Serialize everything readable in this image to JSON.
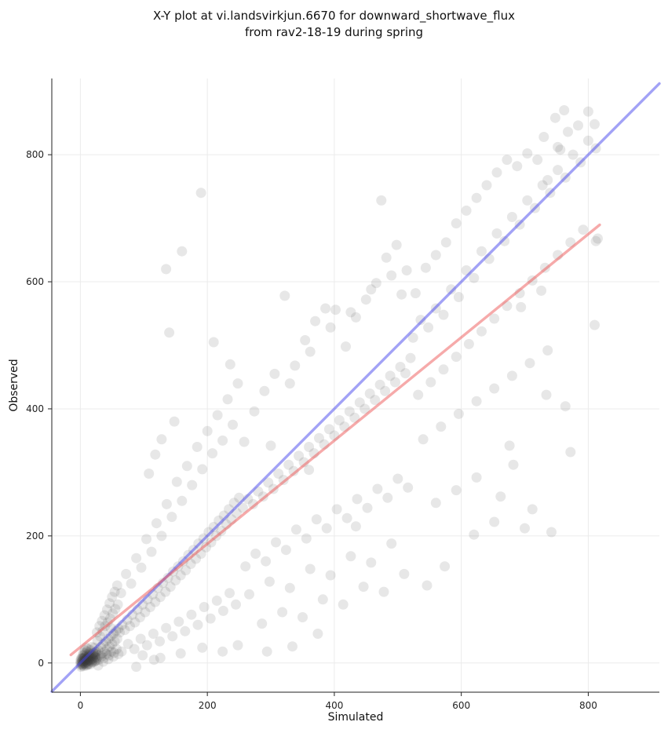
{
  "chart_data": {
    "type": "scatter",
    "title": "X-Y plot at vi.landsvirkjun.6670 for downward_shortwave_flux from rav2-18-19 during spring",
    "title_lines": [
      "X-Y plot at vi.landsvirkjun.6670 for downward_shortwave_flux",
      "from rav2-18-19 during spring"
    ],
    "xlabel": "Simulated",
    "ylabel": "Observed",
    "xlim": [
      -45,
      912
    ],
    "ylim": [
      -46,
      920
    ],
    "x_ticks": [
      0,
      200,
      400,
      600,
      800
    ],
    "y_ticks": [
      0,
      200,
      400,
      600,
      800
    ],
    "grid": true,
    "legend": "none",
    "style": {
      "marker_color": "#3d3d3d",
      "marker_alpha": 0.12,
      "marker_radius": 6.5,
      "grid_color": "#ebebeb",
      "spine_color": "#222222",
      "background": "#ffffff"
    },
    "lines": [
      {
        "name": "identity-1-to-1-line",
        "slope": 1,
        "intercept": 0,
        "x_range": [
          -45,
          912
        ],
        "color": "#4646ee",
        "opacity": 0.5
      },
      {
        "name": "regression-fit-line",
        "slope": 0.8125,
        "intercept": 25,
        "x_range": [
          -15,
          818
        ],
        "color": "#ee5555",
        "opacity": 0.5
      }
    ],
    "points": [
      [
        0,
        -2
      ],
      [
        1,
        1
      ],
      [
        2,
        -4
      ],
      [
        3,
        3
      ],
      [
        4,
        0
      ],
      [
        5,
        6
      ],
      [
        6,
        -1
      ],
      [
        7,
        4
      ],
      [
        8,
        9
      ],
      [
        9,
        2
      ],
      [
        10,
        7
      ],
      [
        11,
        -3
      ],
      [
        12,
        5
      ],
      [
        13,
        12
      ],
      [
        14,
        3
      ],
      [
        15,
        9
      ],
      [
        1,
        -6
      ],
      [
        2,
        2
      ],
      [
        3,
        -2
      ],
      [
        4,
        7
      ],
      [
        5,
        -5
      ],
      [
        6,
        3
      ],
      [
        7,
        10
      ],
      [
        8,
        -2
      ],
      [
        9,
        6
      ],
      [
        10,
        1
      ],
      [
        11,
        8
      ],
      [
        12,
        -1
      ],
      [
        13,
        4
      ],
      [
        14,
        11
      ],
      [
        0,
        3
      ],
      [
        1,
        7
      ],
      [
        2,
        -1
      ],
      [
        3,
        8
      ],
      [
        4,
        -3
      ],
      [
        5,
        2
      ],
      [
        6,
        12
      ],
      [
        7,
        0
      ],
      [
        8,
        5
      ],
      [
        9,
        -4
      ],
      [
        10,
        13
      ],
      [
        11,
        3
      ],
      [
        12,
        10
      ],
      [
        13,
        -2
      ],
      [
        14,
        6
      ],
      [
        15,
        14
      ],
      [
        16,
        4
      ],
      [
        17,
        10
      ],
      [
        18,
        2
      ],
      [
        19,
        8
      ],
      [
        20,
        16
      ],
      [
        21,
        5
      ],
      [
        22,
        12
      ],
      [
        23,
        3
      ],
      [
        24,
        10
      ],
      [
        25,
        18
      ],
      [
        16,
        -2
      ],
      [
        17,
        6
      ],
      [
        18,
        13
      ],
      [
        19,
        1
      ],
      [
        20,
        7
      ],
      [
        21,
        15
      ],
      [
        22,
        2
      ],
      [
        23,
        9
      ],
      [
        24,
        17
      ],
      [
        25,
        4
      ],
      [
        2,
        6
      ],
      [
        4,
        12
      ],
      [
        6,
        8
      ],
      [
        8,
        15
      ],
      [
        10,
        18
      ],
      [
        12,
        22
      ],
      [
        14,
        16
      ],
      [
        16,
        20
      ],
      [
        18,
        25
      ],
      [
        20,
        11
      ],
      [
        22,
        24
      ],
      [
        24,
        14
      ],
      [
        5,
        16
      ],
      [
        7,
        20
      ],
      [
        9,
        24
      ],
      [
        26,
        8
      ],
      [
        28,
        20
      ],
      [
        30,
        12
      ],
      [
        32,
        25
      ],
      [
        34,
        15
      ],
      [
        36,
        30
      ],
      [
        38,
        18
      ],
      [
        40,
        34
      ],
      [
        42,
        22
      ],
      [
        44,
        38
      ],
      [
        46,
        26
      ],
      [
        48,
        42
      ],
      [
        50,
        30
      ],
      [
        52,
        46
      ],
      [
        54,
        34
      ],
      [
        56,
        50
      ],
      [
        58,
        38
      ],
      [
        60,
        54
      ],
      [
        27,
        35
      ],
      [
        31,
        42
      ],
      [
        35,
        50
      ],
      [
        39,
        58
      ],
      [
        43,
        64
      ],
      [
        47,
        70
      ],
      [
        51,
        78
      ],
      [
        55,
        85
      ],
      [
        59,
        92
      ],
      [
        29,
        5
      ],
      [
        33,
        10
      ],
      [
        37,
        8
      ],
      [
        41,
        14
      ],
      [
        45,
        12
      ],
      [
        49,
        18
      ],
      [
        53,
        16
      ],
      [
        57,
        22
      ],
      [
        26,
        48
      ],
      [
        30,
        58
      ],
      [
        34,
        66
      ],
      [
        38,
        75
      ],
      [
        42,
        84
      ],
      [
        46,
        94
      ],
      [
        50,
        104
      ],
      [
        54,
        112
      ],
      [
        58,
        122
      ],
      [
        28,
        -4
      ],
      [
        36,
        2
      ],
      [
        44,
        6
      ],
      [
        52,
        10
      ],
      [
        60,
        14
      ],
      [
        48,
        55
      ],
      [
        62,
        48
      ],
      [
        66,
        60
      ],
      [
        70,
        52
      ],
      [
        74,
        68
      ],
      [
        78,
        58
      ],
      [
        82,
        76
      ],
      [
        86,
        64
      ],
      [
        90,
        84
      ],
      [
        94,
        72
      ],
      [
        98,
        92
      ],
      [
        102,
        80
      ],
      [
        106,
        100
      ],
      [
        110,
        88
      ],
      [
        114,
        108
      ],
      [
        118,
        96
      ],
      [
        122,
        118
      ],
      [
        126,
        104
      ],
      [
        130,
        126
      ],
      [
        134,
        112
      ],
      [
        138,
        134
      ],
      [
        142,
        120
      ],
      [
        146,
        144
      ],
      [
        150,
        130
      ],
      [
        154,
        152
      ],
      [
        158,
        138
      ],
      [
        162,
        160
      ],
      [
        166,
        146
      ],
      [
        170,
        170
      ],
      [
        174,
        156
      ],
      [
        178,
        178
      ],
      [
        182,
        164
      ],
      [
        186,
        188
      ],
      [
        190,
        172
      ],
      [
        194,
        196
      ],
      [
        198,
        182
      ],
      [
        202,
        206
      ],
      [
        206,
        190
      ],
      [
        210,
        214
      ],
      [
        214,
        200
      ],
      [
        218,
        224
      ],
      [
        222,
        208
      ],
      [
        226,
        232
      ],
      [
        230,
        218
      ],
      [
        234,
        242
      ],
      [
        238,
        226
      ],
      [
        242,
        252
      ],
      [
        246,
        236
      ],
      [
        250,
        260
      ],
      [
        64,
        110
      ],
      [
        72,
        140
      ],
      [
        80,
        125
      ],
      [
        88,
        165
      ],
      [
        96,
        150
      ],
      [
        104,
        195
      ],
      [
        112,
        175
      ],
      [
        120,
        220
      ],
      [
        128,
        200
      ],
      [
        136,
        250
      ],
      [
        144,
        230
      ],
      [
        152,
        285
      ],
      [
        160,
        255
      ],
      [
        168,
        310
      ],
      [
        176,
        280
      ],
      [
        184,
        340
      ],
      [
        192,
        305
      ],
      [
        200,
        365
      ],
      [
        208,
        330
      ],
      [
        216,
        390
      ],
      [
        224,
        350
      ],
      [
        232,
        415
      ],
      [
        240,
        375
      ],
      [
        248,
        440
      ],
      [
        65,
        18
      ],
      [
        75,
        30
      ],
      [
        85,
        22
      ],
      [
        95,
        38
      ],
      [
        105,
        28
      ],
      [
        115,
        46
      ],
      [
        125,
        34
      ],
      [
        135,
        55
      ],
      [
        145,
        42
      ],
      [
        155,
        65
      ],
      [
        165,
        50
      ],
      [
        175,
        76
      ],
      [
        185,
        60
      ],
      [
        195,
        88
      ],
      [
        205,
        70
      ],
      [
        215,
        98
      ],
      [
        225,
        82
      ],
      [
        235,
        110
      ],
      [
        245,
        92
      ],
      [
        135,
        620
      ],
      [
        160,
        648
      ],
      [
        190,
        740
      ],
      [
        140,
        520
      ],
      [
        148,
        380
      ],
      [
        128,
        352
      ],
      [
        118,
        328
      ],
      [
        108,
        298
      ],
      [
        210,
        505
      ],
      [
        236,
        470
      ],
      [
        98,
        12
      ],
      [
        126,
        8
      ],
      [
        158,
        15
      ],
      [
        192,
        24
      ],
      [
        224,
        18
      ],
      [
        248,
        28
      ],
      [
        88,
        -6
      ],
      [
        116,
        5
      ],
      [
        256,
        244
      ],
      [
        264,
        258
      ],
      [
        272,
        250
      ],
      [
        280,
        270
      ],
      [
        288,
        262
      ],
      [
        296,
        284
      ],
      [
        304,
        274
      ],
      [
        312,
        298
      ],
      [
        320,
        288
      ],
      [
        328,
        312
      ],
      [
        336,
        302
      ],
      [
        344,
        326
      ],
      [
        352,
        316
      ],
      [
        360,
        340
      ],
      [
        368,
        330
      ],
      [
        376,
        354
      ],
      [
        384,
        344
      ],
      [
        392,
        368
      ],
      [
        400,
        358
      ],
      [
        408,
        382
      ],
      [
        416,
        372
      ],
      [
        424,
        396
      ],
      [
        432,
        386
      ],
      [
        440,
        410
      ],
      [
        448,
        400
      ],
      [
        456,
        424
      ],
      [
        464,
        414
      ],
      [
        472,
        438
      ],
      [
        480,
        428
      ],
      [
        488,
        452
      ],
      [
        496,
        442
      ],
      [
        504,
        466
      ],
      [
        512,
        456
      ],
      [
        520,
        480
      ],
      [
        258,
        348
      ],
      [
        274,
        396
      ],
      [
        290,
        428
      ],
      [
        306,
        455
      ],
      [
        322,
        578
      ],
      [
        338,
        468
      ],
      [
        354,
        508
      ],
      [
        370,
        538
      ],
      [
        386,
        558
      ],
      [
        402,
        556
      ],
      [
        418,
        498
      ],
      [
        434,
        544
      ],
      [
        450,
        572
      ],
      [
        466,
        598
      ],
      [
        482,
        638
      ],
      [
        498,
        658
      ],
      [
        514,
        618
      ],
      [
        330,
        440
      ],
      [
        362,
        490
      ],
      [
        394,
        528
      ],
      [
        426,
        552
      ],
      [
        458,
        588
      ],
      [
        474,
        728
      ],
      [
        490,
        610
      ],
      [
        506,
        580
      ],
      [
        260,
        152
      ],
      [
        276,
        172
      ],
      [
        292,
        160
      ],
      [
        308,
        190
      ],
      [
        324,
        178
      ],
      [
        340,
        210
      ],
      [
        356,
        196
      ],
      [
        372,
        226
      ],
      [
        388,
        212
      ],
      [
        404,
        242
      ],
      [
        420,
        228
      ],
      [
        436,
        258
      ],
      [
        452,
        244
      ],
      [
        468,
        274
      ],
      [
        484,
        260
      ],
      [
        500,
        290
      ],
      [
        516,
        276
      ],
      [
        266,
        108
      ],
      [
        298,
        128
      ],
      [
        330,
        118
      ],
      [
        362,
        148
      ],
      [
        394,
        138
      ],
      [
        426,
        168
      ],
      [
        458,
        158
      ],
      [
        490,
        188
      ],
      [
        286,
        62
      ],
      [
        318,
        80
      ],
      [
        350,
        72
      ],
      [
        382,
        100
      ],
      [
        414,
        92
      ],
      [
        446,
        120
      ],
      [
        478,
        112
      ],
      [
        510,
        140
      ],
      [
        334,
        26
      ],
      [
        374,
        46
      ],
      [
        294,
        18
      ],
      [
        434,
        215
      ],
      [
        360,
        304
      ],
      [
        300,
        342
      ],
      [
        524,
        512
      ],
      [
        536,
        540
      ],
      [
        548,
        528
      ],
      [
        560,
        558
      ],
      [
        572,
        548
      ],
      [
        584,
        588
      ],
      [
        596,
        576
      ],
      [
        608,
        618
      ],
      [
        620,
        606
      ],
      [
        632,
        648
      ],
      [
        644,
        636
      ],
      [
        656,
        676
      ],
      [
        668,
        664
      ],
      [
        680,
        702
      ],
      [
        692,
        690
      ],
      [
        704,
        728
      ],
      [
        716,
        716
      ],
      [
        728,
        752
      ],
      [
        740,
        740
      ],
      [
        752,
        776
      ],
      [
        764,
        764
      ],
      [
        776,
        800
      ],
      [
        788,
        788
      ],
      [
        800,
        822
      ],
      [
        812,
        810
      ],
      [
        528,
        582
      ],
      [
        544,
        622
      ],
      [
        560,
        642
      ],
      [
        576,
        662
      ],
      [
        592,
        692
      ],
      [
        608,
        712
      ],
      [
        624,
        732
      ],
      [
        640,
        752
      ],
      [
        656,
        772
      ],
      [
        672,
        792
      ],
      [
        688,
        782
      ],
      [
        704,
        802
      ],
      [
        720,
        792
      ],
      [
        736,
        760
      ],
      [
        752,
        812
      ],
      [
        768,
        836
      ],
      [
        784,
        846
      ],
      [
        800,
        868
      ],
      [
        810,
        848
      ],
      [
        756,
        808
      ],
      [
        748,
        858
      ],
      [
        762,
        870
      ],
      [
        730,
        828
      ],
      [
        532,
        422
      ],
      [
        552,
        442
      ],
      [
        572,
        462
      ],
      [
        592,
        482
      ],
      [
        612,
        502
      ],
      [
        632,
        522
      ],
      [
        652,
        542
      ],
      [
        672,
        562
      ],
      [
        692,
        582
      ],
      [
        712,
        602
      ],
      [
        732,
        622
      ],
      [
        752,
        642
      ],
      [
        772,
        662
      ],
      [
        792,
        682
      ],
      [
        812,
        664
      ],
      [
        540,
        352
      ],
      [
        568,
        372
      ],
      [
        596,
        392
      ],
      [
        624,
        412
      ],
      [
        652,
        432
      ],
      [
        680,
        452
      ],
      [
        708,
        472
      ],
      [
        736,
        492
      ],
      [
        810,
        532
      ],
      [
        815,
        668
      ],
      [
        560,
        252
      ],
      [
        592,
        272
      ],
      [
        624,
        292
      ],
      [
        652,
        222
      ],
      [
        682,
        312
      ],
      [
        712,
        242
      ],
      [
        742,
        206
      ],
      [
        772,
        332
      ],
      [
        620,
        202
      ],
      [
        662,
        262
      ],
      [
        700,
        212
      ],
      [
        574,
        152
      ],
      [
        546,
        122
      ],
      [
        676,
        342
      ],
      [
        734,
        422
      ],
      [
        764,
        404
      ],
      [
        694,
        560
      ],
      [
        726,
        586
      ]
    ]
  }
}
